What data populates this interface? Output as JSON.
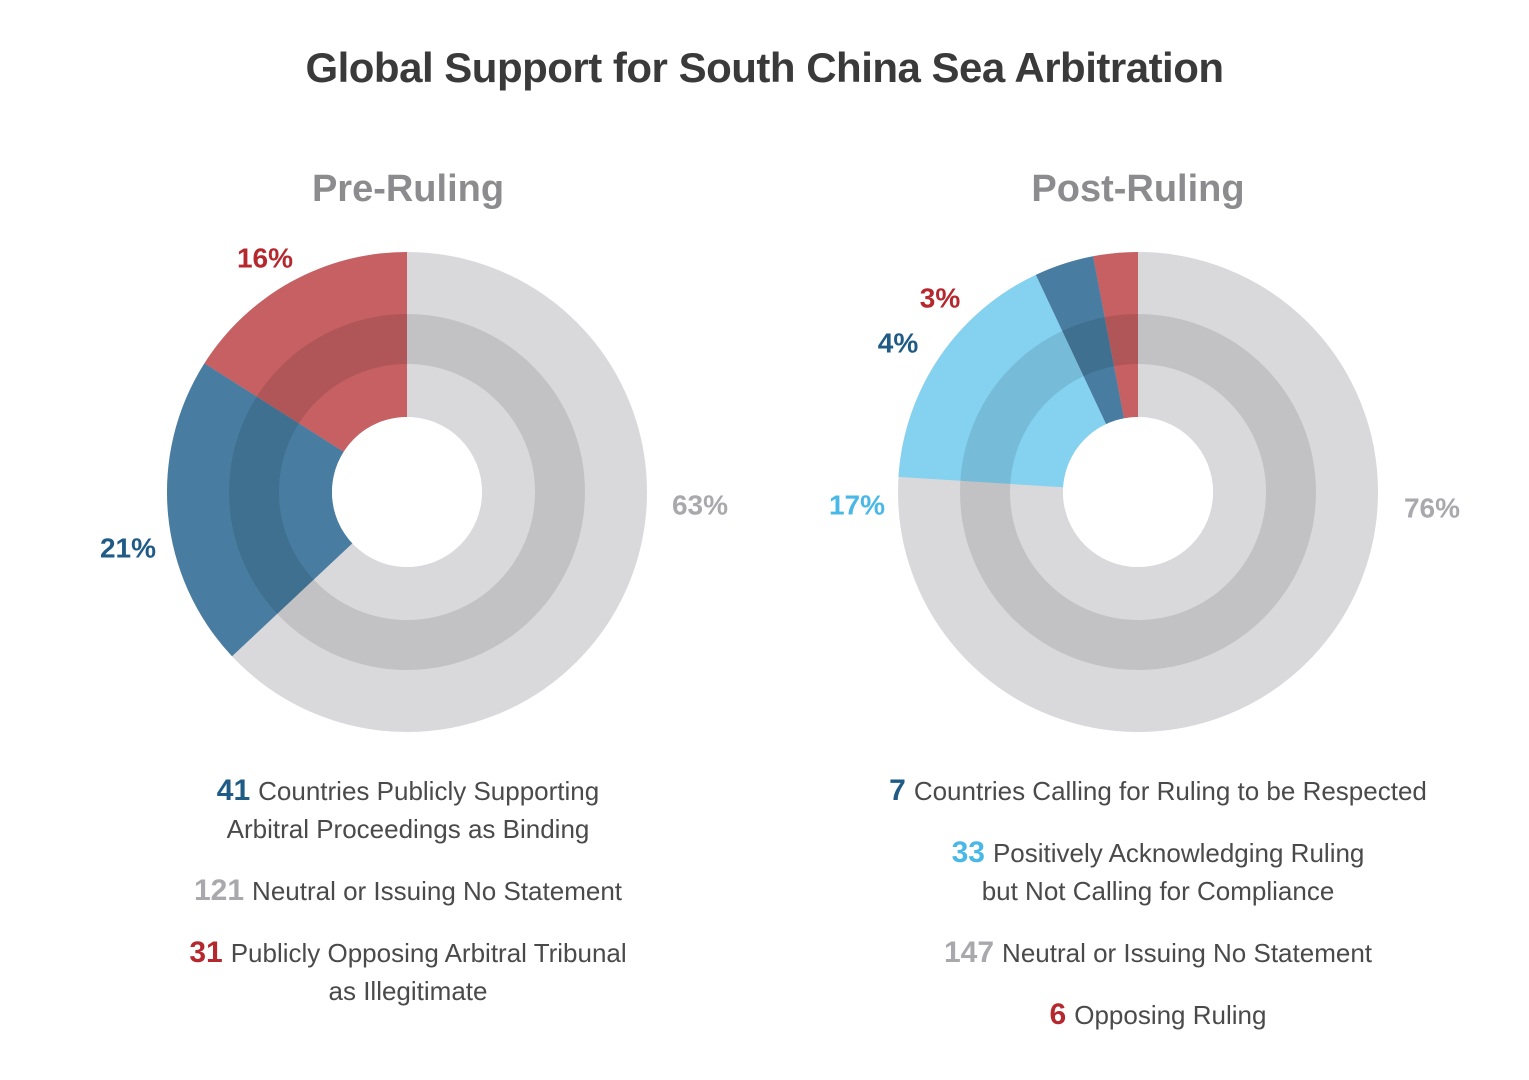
{
  "title": "Global Support for South China Sea Arbitration",
  "colors": {
    "supporting": "#2e6c96",
    "neutral": "#d9d9dc",
    "neutral_ring": "#c4c4c9",
    "opposing": "#c24a4d",
    "acknowledging": "#74cff3",
    "num_neutral": "#a9a9ad",
    "num_opposing": "#b5282e",
    "num_acknowledging": "#49b8e6",
    "num_supporting": "#1f5b85"
  },
  "chart_data": [
    {
      "type": "pie",
      "title": "Pre-Ruling",
      "slices": [
        {
          "label": "Publicly Opposing Arbitral Tribunal as Illegitimate",
          "count": 31,
          "percent": 16,
          "color": "#c24a4d",
          "percent_label": "16%"
        },
        {
          "label": "Countries Publicly Supporting Arbitral Proceedings as Binding",
          "count": 41,
          "percent": 21,
          "color": "#2e6c96",
          "percent_label": "21%"
        },
        {
          "label": "Neutral or Issuing No Statement",
          "count": 121,
          "percent": 63,
          "color": "#d9d9dc",
          "percent_label": "63%"
        }
      ],
      "legend": [
        {
          "num": "41",
          "text": "Countries Publicly Supporting\nArbitral Proceedings as Binding",
          "color": "#1f5b85"
        },
        {
          "num": "121",
          "text": "Neutral or Issuing No Statement",
          "color": "#a9a9ad"
        },
        {
          "num": "31",
          "text": "Publicly Opposing Arbitral Tribunal\nas Illegitimate",
          "color": "#b5282e"
        }
      ]
    },
    {
      "type": "pie",
      "title": "Post-Ruling",
      "slices": [
        {
          "label": "Opposing Ruling",
          "count": 6,
          "percent": 3,
          "color": "#c24a4d",
          "percent_label": "3%"
        },
        {
          "label": "Countries Calling for Ruling to be Respected",
          "count": 7,
          "percent": 4,
          "color": "#2e6c96",
          "percent_label": "4%"
        },
        {
          "label": "Positively Acknowledging Ruling but Not Calling for Compliance",
          "count": 33,
          "percent": 17,
          "color": "#74cff3",
          "percent_label": "17%"
        },
        {
          "label": "Neutral or Issuing No Statement",
          "count": 147,
          "percent": 76,
          "color": "#d9d9dc",
          "percent_label": "76%"
        }
      ],
      "legend": [
        {
          "num": "7",
          "text": "Countries Calling for Ruling to be Respected",
          "color": "#1f5b85"
        },
        {
          "num": "33",
          "text": "Positively Acknowledging Ruling\nbut Not Calling for Compliance",
          "color": "#49b8e6"
        },
        {
          "num": "147",
          "text": "Neutral or Issuing No Statement",
          "color": "#a9a9ad"
        },
        {
          "num": "6",
          "text": "Opposing Ruling",
          "color": "#b5282e"
        }
      ]
    }
  ]
}
